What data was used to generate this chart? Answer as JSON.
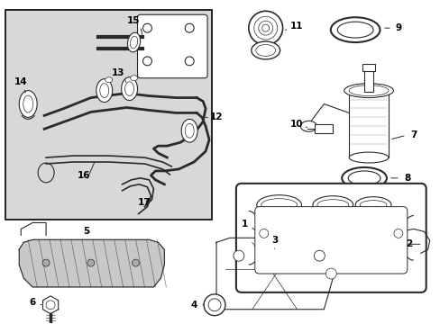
{
  "bg_color": "#ffffff",
  "line_color": "#2a2a2a",
  "inset_bg": "#e0e0e0",
  "fig_width": 4.89,
  "fig_height": 3.6,
  "dpi": 100
}
